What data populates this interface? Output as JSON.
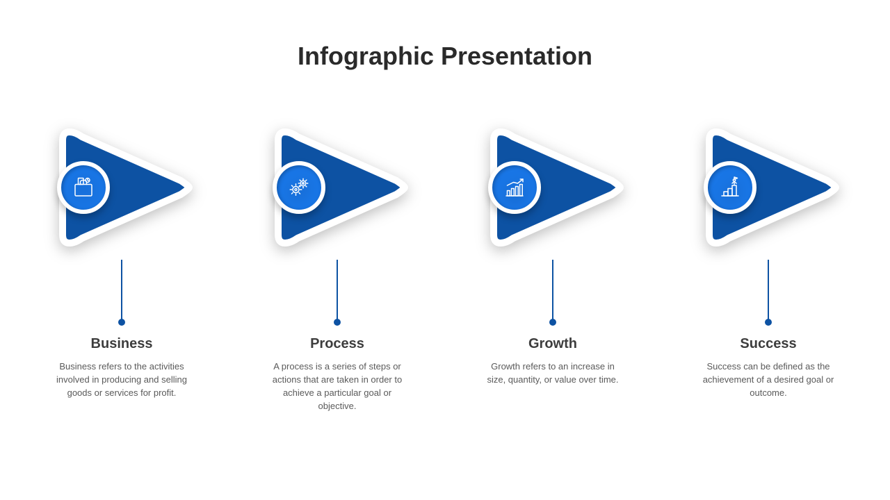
{
  "title": "Infographic Presentation",
  "title_fontsize": 36,
  "title_color": "#2a2a2a",
  "background_color": "#ffffff",
  "arrow_fill": "#0d52a3",
  "arrow_border": "#ffffff",
  "arrow_border_width": 10,
  "icon_circle_fill": "#1976e6",
  "icon_circle_border": "#ffffff",
  "connector_color": "#0d52a3",
  "connector_height": 90,
  "item_title_fontsize": 20,
  "item_title_color": "#3d3d3d",
  "item_desc_fontsize": 13,
  "item_desc_color": "#5a5a5a",
  "icon_stroke": "#ffffff",
  "items": [
    {
      "title": "Business",
      "desc": "Business refers to the activities involved in producing and selling goods or services for profit.",
      "icon": "briefcase-icon"
    },
    {
      "title": "Process",
      "desc": "A process is a series of steps or actions that are taken in order to achieve a particular goal or objective.",
      "icon": "gears-icon"
    },
    {
      "title": "Growth",
      "desc": "Growth refers to an increase in size, quantity, or value over time.",
      "icon": "chart-icon"
    },
    {
      "title": "Success",
      "desc": "Success can be defined as the achievement of a desired goal or outcome.",
      "icon": "flag-icon"
    }
  ]
}
